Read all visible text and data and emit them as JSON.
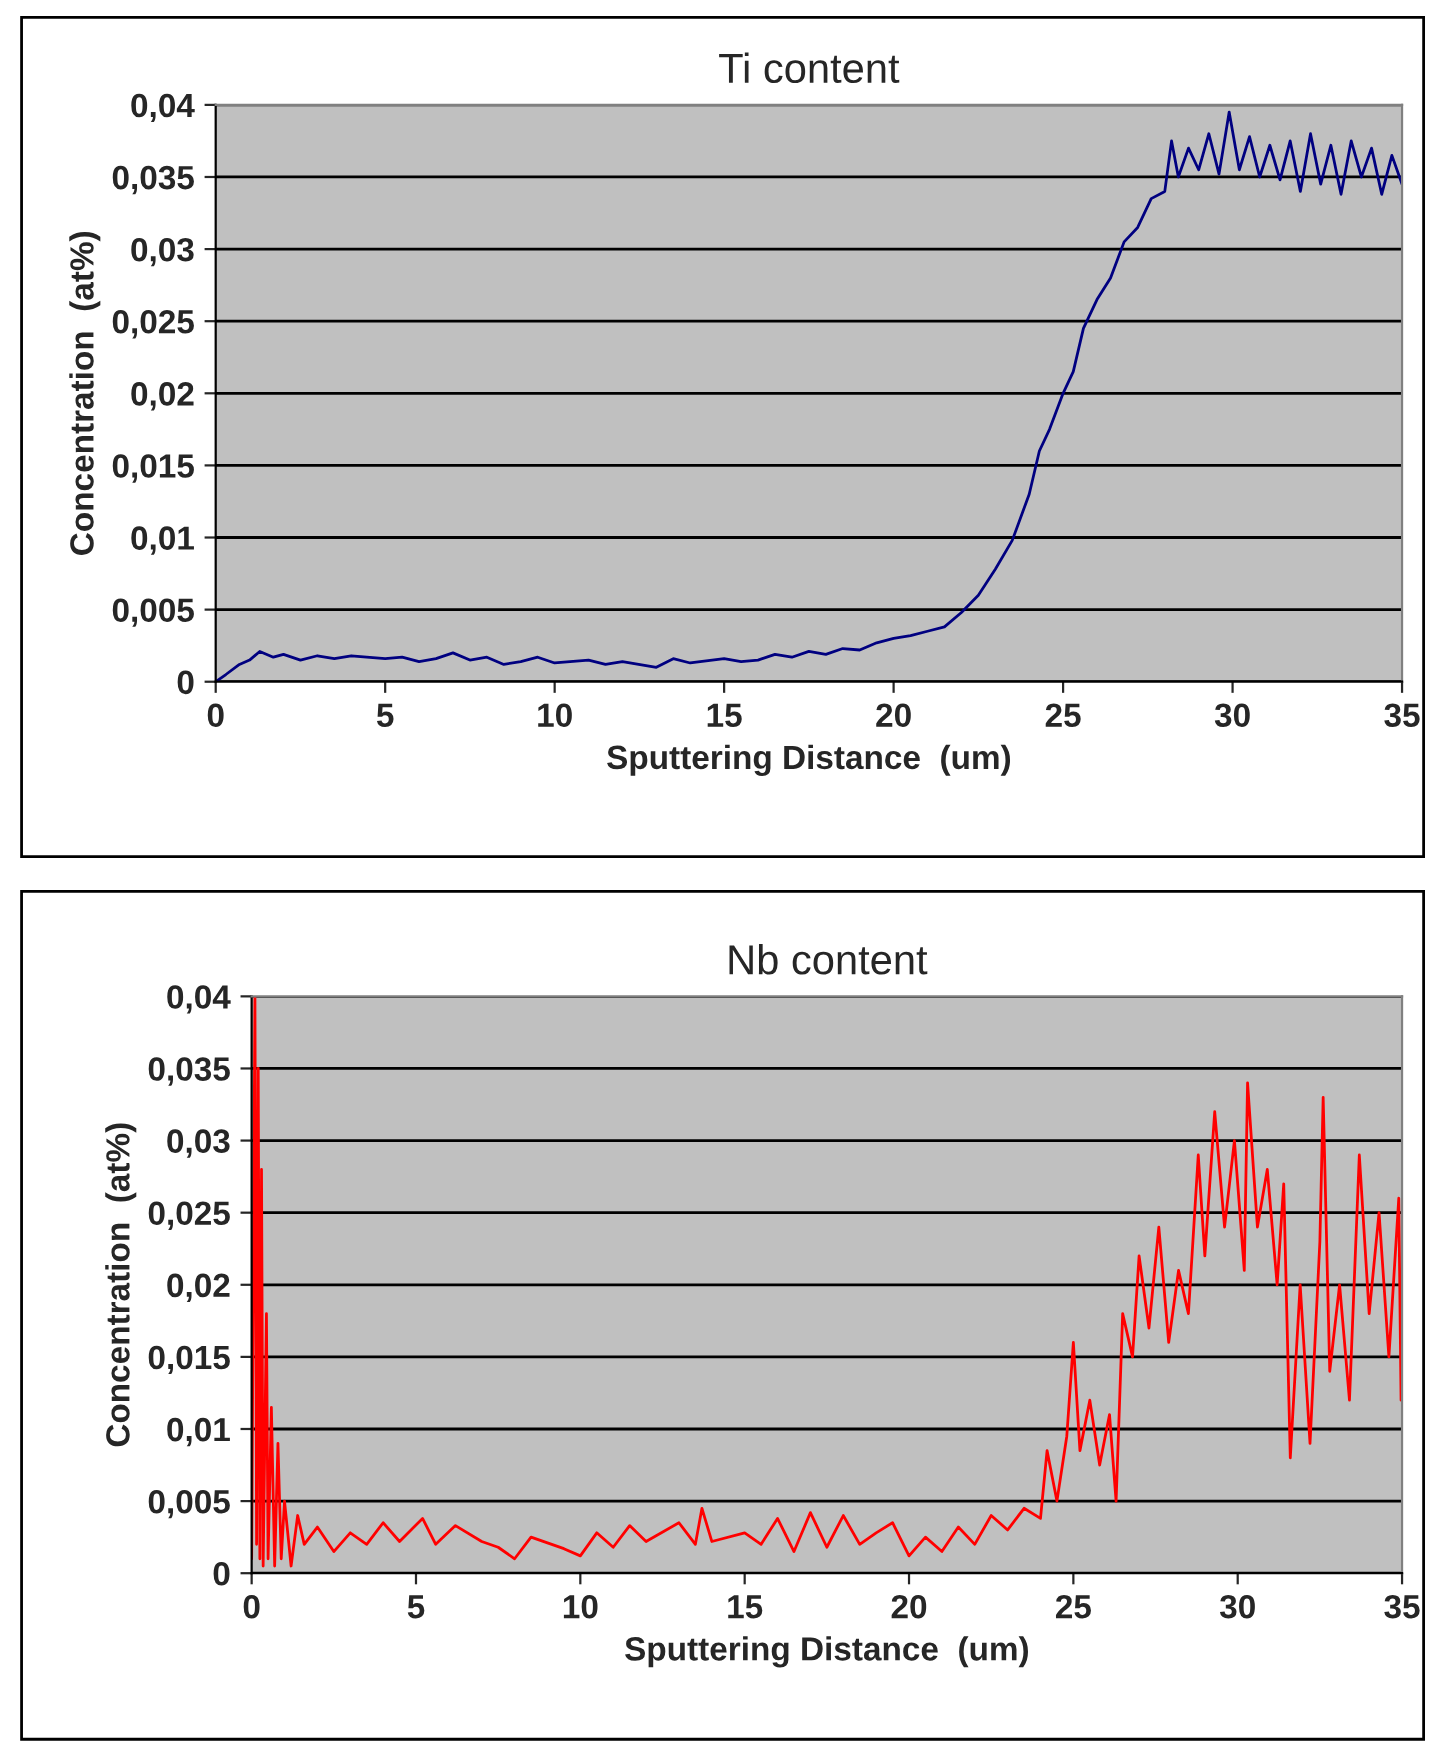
{
  "chart_data": [
    {
      "type": "line",
      "title": "Ti content",
      "xlabel": "Sputtering Distance  (um)",
      "ylabel": "Concentration  (at%)",
      "xlim": [
        0,
        35
      ],
      "xticks": [
        0,
        5,
        10,
        15,
        20,
        25,
        30,
        35
      ],
      "ylim": [
        0,
        0.04
      ],
      "yticks": [
        0,
        {
          "value": 0.005,
          "label": "0,005"
        },
        {
          "value": 0.01,
          "label": "0,01"
        },
        {
          "value": 0.015,
          "label": "0,015"
        },
        {
          "value": 0.02,
          "label": "0,02"
        },
        {
          "value": 0.025,
          "label": "0,025"
        },
        {
          "value": 0.03,
          "label": "0,03"
        },
        {
          "value": 0.035,
          "label": "0,035"
        },
        {
          "value": 0.04,
          "label": "0,04"
        }
      ],
      "grid": "y",
      "marker": "none",
      "line_style": "solid",
      "series": [
        {
          "color": "#000080",
          "x": [
            0,
            0.3,
            0.7,
            1,
            1.3,
            1.7,
            2,
            2.5,
            3,
            3.5,
            4,
            5,
            5.5,
            6,
            6.5,
            7,
            7.5,
            8,
            8.5,
            9,
            9.5,
            10,
            11,
            11.5,
            12,
            13,
            13.5,
            14,
            15,
            15.5,
            16,
            16.5,
            17,
            17.5,
            18,
            18.5,
            19,
            19.5,
            20,
            20.5,
            21,
            21.5,
            22,
            22.5,
            23,
            23.5,
            24,
            24.3,
            24.6,
            25,
            25.3,
            25.6,
            26,
            26.4,
            26.8,
            27.2,
            27.6,
            28,
            28.2,
            28.4,
            28.7,
            29,
            29.3,
            29.6,
            29.9,
            30.2,
            30.5,
            30.8,
            31.1,
            31.4,
            31.7,
            32,
            32.3,
            32.6,
            32.9,
            33.2,
            33.5,
            33.8,
            34.1,
            34.4,
            34.7,
            35
          ],
          "values": [
            0,
            0.0005,
            0.0012,
            0.0015,
            0.0021,
            0.0017,
            0.0019,
            0.0015,
            0.0018,
            0.0016,
            0.0018,
            0.0016,
            0.0017,
            0.0014,
            0.0016,
            0.002,
            0.0015,
            0.0017,
            0.0012,
            0.0014,
            0.0017,
            0.0013,
            0.0015,
            0.0012,
            0.0014,
            0.001,
            0.0016,
            0.0013,
            0.0016,
            0.0014,
            0.0015,
            0.0019,
            0.0017,
            0.0021,
            0.0019,
            0.0023,
            0.0022,
            0.0027,
            0.003,
            0.0032,
            0.0035,
            0.0038,
            0.0048,
            0.006,
            0.0078,
            0.0098,
            0.013,
            0.016,
            0.0175,
            0.02,
            0.0215,
            0.0245,
            0.0265,
            0.028,
            0.0305,
            0.0315,
            0.0335,
            0.034,
            0.0375,
            0.035,
            0.037,
            0.0355,
            0.038,
            0.0352,
            0.0395,
            0.0355,
            0.0378,
            0.035,
            0.0372,
            0.0348,
            0.0375,
            0.034,
            0.038,
            0.0345,
            0.0372,
            0.0338,
            0.0375,
            0.035,
            0.037,
            0.0338,
            0.0365,
            0.0345
          ]
        }
      ]
    },
    {
      "type": "line",
      "title": "Nb content",
      "xlabel": "Sputtering Distance  (um)",
      "ylabel": "Concentration  (at%)",
      "xlim": [
        0,
        35
      ],
      "xticks": [
        0,
        5,
        10,
        15,
        20,
        25,
        30,
        35
      ],
      "ylim": [
        0,
        0.04
      ],
      "yticks": [
        0,
        {
          "value": 0.005,
          "label": "0,005"
        },
        {
          "value": 0.01,
          "label": "0,01"
        },
        {
          "value": 0.015,
          "label": "0,015"
        },
        {
          "value": 0.02,
          "label": "0,02"
        },
        {
          "value": 0.025,
          "label": "0,025"
        },
        {
          "value": 0.03,
          "label": "0,03"
        },
        {
          "value": 0.035,
          "label": "0,035"
        },
        {
          "value": 0.04,
          "label": "0,04"
        }
      ],
      "grid": "y",
      "marker": "none",
      "line_style": "solid",
      "series": [
        {
          "color": "#ff0000",
          "x": [
            0,
            0.1,
            0.15,
            0.2,
            0.25,
            0.3,
            0.35,
            0.45,
            0.5,
            0.6,
            0.7,
            0.8,
            0.9,
            1.0,
            1.2,
            1.4,
            1.6,
            2,
            2.5,
            3,
            3.5,
            4,
            4.5,
            5.2,
            5.6,
            6.2,
            7,
            7.5,
            8,
            8.5,
            9.5,
            10,
            10.5,
            11,
            11.5,
            12,
            13,
            13.5,
            13.7,
            14,
            15,
            15.5,
            16,
            16.5,
            17,
            17.5,
            18,
            18.5,
            19,
            19.5,
            20,
            20.5,
            21,
            21.5,
            22,
            22.5,
            23,
            23.5,
            24,
            24.2,
            24.5,
            24.8,
            25,
            25.2,
            25.5,
            25.8,
            26.1,
            26.3,
            26.5,
            26.8,
            27,
            27.3,
            27.6,
            27.9,
            28.2,
            28.5,
            28.8,
            29,
            29.3,
            29.6,
            29.9,
            30.2,
            30.3,
            30.6,
            30.9,
            31.2,
            31.4,
            31.6,
            31.9,
            32.2,
            32.5,
            32.6,
            32.8,
            33.1,
            33.4,
            33.7,
            34,
            34.3,
            34.6,
            34.9,
            34.97
          ],
          "values": [
            0.001,
            0.04,
            0.002,
            0.035,
            0.001,
            0.028,
            0.0005,
            0.018,
            0.001,
            0.0115,
            0.0005,
            0.009,
            0.001,
            0.005,
            0.0005,
            0.004,
            0.002,
            0.0032,
            0.0015,
            0.0028,
            0.002,
            0.0035,
            0.0022,
            0.0038,
            0.002,
            0.0033,
            0.0022,
            0.0018,
            0.001,
            0.0025,
            0.0017,
            0.0012,
            0.0028,
            0.0018,
            0.0033,
            0.0022,
            0.0035,
            0.002,
            0.0045,
            0.0022,
            0.0028,
            0.002,
            0.0038,
            0.0015,
            0.0042,
            0.0018,
            0.004,
            0.002,
            0.0028,
            0.0035,
            0.0012,
            0.0025,
            0.0015,
            0.0032,
            0.002,
            0.004,
            0.003,
            0.0045,
            0.0038,
            0.0085,
            0.005,
            0.0095,
            0.016,
            0.0085,
            0.012,
            0.0075,
            0.011,
            0.005,
            0.018,
            0.015,
            0.022,
            0.017,
            0.024,
            0.016,
            0.021,
            0.018,
            0.029,
            0.022,
            0.032,
            0.024,
            0.03,
            0.021,
            0.034,
            0.024,
            0.028,
            0.02,
            0.027,
            0.008,
            0.02,
            0.009,
            0.023,
            0.033,
            0.014,
            0.02,
            0.012,
            0.029,
            0.018,
            0.025,
            0.015,
            0.026,
            0.012
          ]
        }
      ]
    }
  ]
}
